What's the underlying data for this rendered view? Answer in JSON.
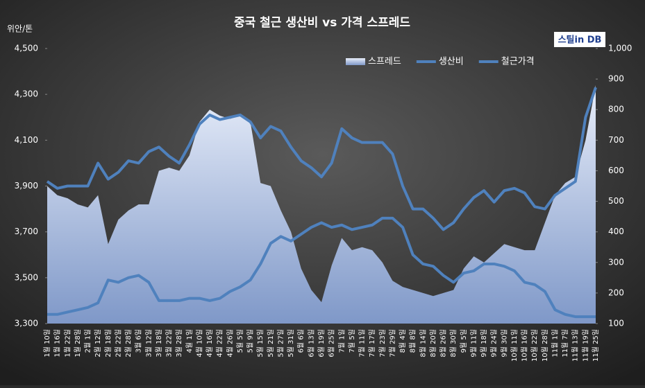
{
  "chart_data": {
    "type": "line",
    "title": "중국 철근 생산비 vs 가격 스프레드",
    "y_axis_label": "위안/톤",
    "logo": "스틸in DB",
    "categories": [
      "1월 10일",
      "1월 16일",
      "1월 22일",
      "1월 28일",
      "2월 1일",
      "2월 12일",
      "2월 18일",
      "2월 22일",
      "2월 28일",
      "3월 6일",
      "3월 12일",
      "3월 18일",
      "3월 22일",
      "3월 28일",
      "4월 1일",
      "4월 10일",
      "4월 16일",
      "4월 22일",
      "4월 26일",
      "5월 5일",
      "5월 9일",
      "5월 15일",
      "5월 21일",
      "5월 27일",
      "5월 31일",
      "6월 6일",
      "6월 13일",
      "6월 19일",
      "6월 25일",
      "7월 1일",
      "7월 5일",
      "7월 11일",
      "7월 17일",
      "7월 23일",
      "7월 29일",
      "8월 4일",
      "8월 8일",
      "8월 14일",
      "8월 20일",
      "8월 26일",
      "8월 30일",
      "9월 5일",
      "9월 11일",
      "9월 18일",
      "9월 24일",
      "9월 30일",
      "10월 11일",
      "10월 16일",
      "10월 22일",
      "10월 28일",
      "11월 1일",
      "11월 7일",
      "11월 13일",
      "11월 19일",
      "11월 25일"
    ],
    "series": [
      {
        "name": "스프레드",
        "type": "area",
        "axis": "y2",
        "color": "#c5d3ec",
        "values": [
          550,
          520,
          510,
          490,
          480,
          520,
          360,
          440,
          470,
          490,
          490,
          600,
          610,
          600,
          650,
          760,
          800,
          780,
          770,
          780,
          760,
          560,
          550,
          470,
          400,
          280,
          210,
          170,
          290,
          380,
          340,
          350,
          340,
          300,
          240,
          220,
          210,
          200,
          190,
          200,
          210,
          280,
          320,
          300,
          330,
          360,
          350,
          340,
          340,
          430,
          520,
          560,
          580,
          700,
          880
        ]
      },
      {
        "name": "생산비",
        "type": "line",
        "color": "#4f81bd",
        "values": [
          3340,
          3340,
          3350,
          3360,
          3370,
          3390,
          3490,
          3480,
          3500,
          3510,
          3480,
          3400,
          3400,
          3400,
          3410,
          3410,
          3400,
          3410,
          3440,
          3460,
          3490,
          3560,
          3650,
          3680,
          3660,
          3690,
          3720,
          3740,
          3720,
          3730,
          3710,
          3720,
          3730,
          3760,
          3760,
          3720,
          3600,
          3560,
          3550,
          3510,
          3480,
          3520,
          3530,
          3560,
          3560,
          3550,
          3530,
          3480,
          3470,
          3440,
          3360,
          3340,
          3330,
          3330,
          3330
        ]
      },
      {
        "name": "철근가격",
        "type": "line",
        "color": "#4f81bd",
        "values": [
          3920,
          3890,
          3900,
          3900,
          3900,
          4000,
          3930,
          3960,
          4010,
          4000,
          4050,
          4070,
          4030,
          4000,
          4080,
          4170,
          4210,
          4190,
          4200,
          4210,
          4180,
          4110,
          4160,
          4140,
          4070,
          4010,
          3980,
          3940,
          4000,
          4150,
          4110,
          4090,
          4090,
          4090,
          4040,
          3900,
          3800,
          3800,
          3760,
          3710,
          3740,
          3800,
          3850,
          3880,
          3830,
          3880,
          3890,
          3870,
          3810,
          3800,
          3860,
          3890,
          3920,
          4200,
          4330
        ]
      }
    ],
    "ylim": [
      3300,
      4500
    ],
    "yticks": [
      {
        "value": 3300,
        "label": "3,300"
      },
      {
        "value": 3500,
        "label": "3,500"
      },
      {
        "value": 3700,
        "label": "3,700"
      },
      {
        "value": 3900,
        "label": "3,900"
      },
      {
        "value": 4100,
        "label": "4,100"
      },
      {
        "value": 4300,
        "label": "4,300"
      },
      {
        "value": 4500,
        "label": "4,500"
      }
    ],
    "y2lim": [
      100,
      1000
    ],
    "y2ticks": [
      100,
      200,
      300,
      400,
      500,
      600,
      700,
      800,
      900,
      {
        "value": 1000,
        "label": "1,000"
      }
    ],
    "legend": "top-right"
  }
}
